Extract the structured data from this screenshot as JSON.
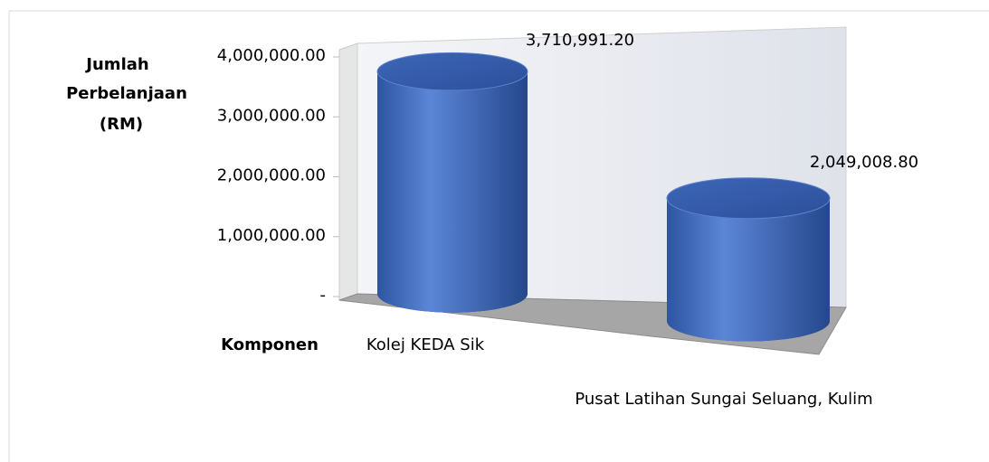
{
  "chart_data": {
    "type": "bar3d",
    "ylabel": [
      "Jumlah",
      "Perbelanjaan",
      "(RM)"
    ],
    "xlabel": "Komponen",
    "categories": [
      "Kolej KEDA Sik",
      "Pusat Latihan Sungai Seluang, Kulim"
    ],
    "values": [
      3710991.2,
      2049008.8
    ],
    "value_labels": [
      "3,710,991.20",
      "2,049,008.80"
    ],
    "color": "#4472c4",
    "ylim": [
      0,
      4000000
    ],
    "yticks": [
      {
        "value": 0,
        "label": "-"
      },
      {
        "value": 1000000,
        "label": "1,000,000.00"
      },
      {
        "value": 2000000,
        "label": "2,000,000.00"
      },
      {
        "value": 3000000,
        "label": "3,000,000.00"
      },
      {
        "value": 4000000,
        "label": "4,000,000.00"
      }
    ]
  }
}
